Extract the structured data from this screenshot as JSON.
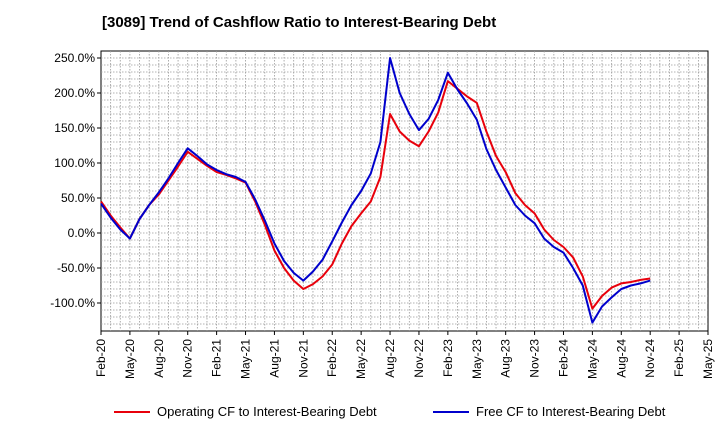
{
  "title": "[3089]  Trend of Cashflow Ratio to Interest-Bearing Debt",
  "chart_data": {
    "type": "line",
    "title": "[3089]  Trend of Cashflow Ratio to Interest-Bearing Debt",
    "xlabel": "",
    "ylabel": "",
    "ylim": [
      -140,
      260
    ],
    "y_ticks": [
      250,
      200,
      150,
      100,
      50,
      0,
      -50,
      -100
    ],
    "y_tick_labels": [
      "250.0%",
      "200.0%",
      "150.0%",
      "100.0%",
      "50.0%",
      "0.0%",
      "-50.0%",
      "-100.0%"
    ],
    "x_tick_labels": [
      "Feb-20",
      "May-20",
      "Aug-20",
      "Nov-20",
      "Feb-21",
      "May-21",
      "Aug-21",
      "Nov-21",
      "Feb-22",
      "May-22",
      "Aug-22",
      "Nov-22",
      "Feb-23",
      "May-23",
      "Aug-23",
      "Nov-23",
      "Feb-24",
      "May-24",
      "Aug-24",
      "Nov-24",
      "Feb-25",
      "May-25"
    ],
    "x": [
      "Feb-20",
      "Mar-20",
      "Apr-20",
      "May-20",
      "Jun-20",
      "Jul-20",
      "Aug-20",
      "Sep-20",
      "Oct-20",
      "Nov-20",
      "Dec-20",
      "Jan-21",
      "Feb-21",
      "Mar-21",
      "Apr-21",
      "May-21",
      "Jun-21",
      "Jul-21",
      "Aug-21",
      "Sep-21",
      "Oct-21",
      "Nov-21",
      "Dec-21",
      "Jan-22",
      "Feb-22",
      "Mar-22",
      "Apr-22",
      "May-22",
      "Jun-22",
      "Jul-22",
      "Aug-22",
      "Sep-22",
      "Oct-22",
      "Nov-22",
      "Dec-22",
      "Jan-23",
      "Feb-23",
      "Mar-23",
      "Apr-23",
      "May-23",
      "Jun-23",
      "Jul-23",
      "Aug-23",
      "Sep-23",
      "Oct-23",
      "Nov-23",
      "Dec-23",
      "Jan-24",
      "Feb-24",
      "Mar-24",
      "Apr-24",
      "May-24",
      "Jun-24",
      "Jul-24",
      "Aug-24",
      "Sep-24",
      "Oct-24",
      "Nov-24"
    ],
    "grid": true,
    "legend_position": "bottom",
    "series": [
      {
        "name": "Operating CF to Interest-Bearing Debt",
        "color": "#e8000b",
        "values": [
          45,
          25,
          8,
          -8,
          20,
          40,
          55,
          75,
          95,
          116,
          106,
          96,
          87,
          83,
          78,
          72,
          45,
          12,
          -25,
          -50,
          -68,
          -80,
          -73,
          -62,
          -45,
          -15,
          10,
          28,
          45,
          80,
          170,
          145,
          132,
          124,
          145,
          172,
          217,
          206,
          195,
          186,
          145,
          110,
          87,
          57,
          40,
          28,
          5,
          -10,
          -20,
          -35,
          -62,
          -108,
          -90,
          -78,
          -72,
          -70,
          -67,
          -65
        ]
      },
      {
        "name": "Free CF to Interest-Bearing Debt",
        "color": "#0000cc",
        "values": [
          42,
          22,
          5,
          -8,
          20,
          40,
          58,
          78,
          100,
          121,
          110,
          98,
          90,
          84,
          80,
          73,
          48,
          18,
          -15,
          -40,
          -57,
          -68,
          -55,
          -38,
          -12,
          15,
          40,
          60,
          85,
          130,
          250,
          200,
          170,
          147,
          163,
          190,
          229,
          205,
          185,
          162,
          120,
          90,
          65,
          40,
          25,
          14,
          -8,
          -20,
          -28,
          -50,
          -75,
          -128,
          -105,
          -92,
          -80,
          -75,
          -72,
          -68
        ]
      }
    ]
  }
}
